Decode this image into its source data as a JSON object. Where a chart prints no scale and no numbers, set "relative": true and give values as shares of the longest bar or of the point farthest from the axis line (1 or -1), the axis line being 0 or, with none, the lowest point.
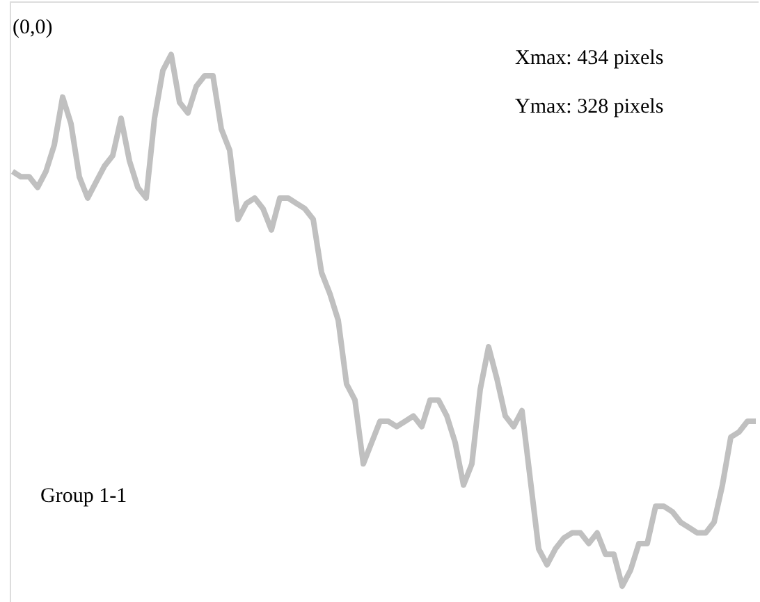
{
  "chart_data": {
    "type": "line",
    "relative": true,
    "color": "#c0c0c0",
    "categories": [
      null,
      null,
      null,
      null,
      null,
      null,
      null,
      null,
      null,
      null,
      null,
      null,
      null,
      null,
      null,
      null,
      null,
      null,
      null,
      null,
      null,
      null,
      null,
      null,
      null,
      null,
      null,
      null,
      null,
      null,
      null,
      null,
      null,
      null,
      null,
      null,
      null,
      null,
      null,
      null,
      null,
      null,
      null,
      null,
      null,
      null,
      null,
      null,
      null,
      null,
      null,
      null,
      null,
      null,
      null,
      null,
      null,
      null,
      null,
      null,
      null,
      null,
      null,
      null,
      null,
      null,
      null,
      null,
      null,
      null,
      null,
      null,
      null,
      null,
      null,
      null,
      null,
      null,
      null,
      null,
      null,
      null,
      null,
      null,
      null,
      null,
      null,
      null,
      null,
      null
    ],
    "values": [
      0.78,
      0.77,
      0.77,
      0.75,
      0.78,
      0.83,
      0.92,
      0.87,
      0.77,
      0.73,
      0.76,
      0.79,
      0.81,
      0.88,
      0.8,
      0.75,
      0.73,
      0.88,
      0.97,
      1.0,
      0.91,
      0.89,
      0.94,
      0.96,
      0.96,
      0.86,
      0.82,
      0.69,
      0.72,
      0.73,
      0.71,
      0.67,
      0.73,
      0.73,
      0.72,
      0.71,
      0.69,
      0.59,
      0.55,
      0.5,
      0.38,
      0.35,
      0.23,
      0.27,
      0.31,
      0.31,
      0.3,
      0.31,
      0.32,
      0.3,
      0.35,
      0.35,
      0.32,
      0.27,
      0.19,
      0.23,
      0.37,
      0.45,
      0.39,
      0.32,
      0.3,
      0.33,
      0.2,
      0.07,
      0.04,
      0.07,
      0.09,
      0.1,
      0.1,
      0.08,
      0.1,
      0.06,
      0.06,
      0.0,
      0.03,
      0.08,
      0.08,
      0.15,
      0.15,
      0.14,
      0.12,
      0.11,
      0.1,
      0.1,
      0.12,
      0.19,
      0.28,
      0.29,
      0.31,
      0.31
    ],
    "annotations": [
      "(0,0)",
      "Xmax: 434 pixels",
      "Ymax: 328 pixels",
      "Group 1-1"
    ]
  }
}
